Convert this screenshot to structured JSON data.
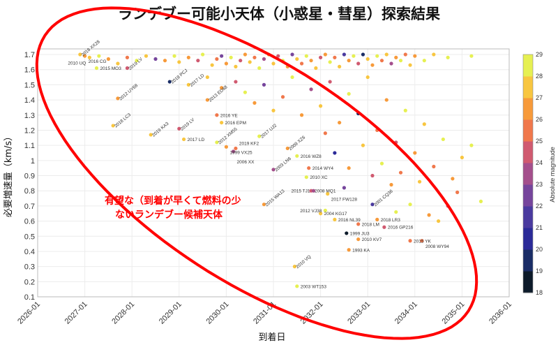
{
  "chart_data": {
    "type": "scatter",
    "title": "ランデブー可能小天体（小惑星・彗星）探索結果",
    "xlabel": "到着日",
    "ylabel": "必要増速量（km/s）",
    "xlim": [
      2026,
      2036
    ],
    "ylim": [
      0.1,
      1.7
    ],
    "x_ticks": [
      "2026-01",
      "2027-01",
      "2028-01",
      "2029-01",
      "2030-01",
      "2031-01",
      "2032-01",
      "2033-01",
      "2034-01",
      "2035-01",
      "2036-01"
    ],
    "y_ticks": [
      0.1,
      0.2,
      0.3,
      0.4,
      0.5,
      0.6,
      0.7,
      0.8,
      0.9,
      1,
      1.1,
      1.2,
      1.3,
      1.4,
      1.5,
      1.6,
      1.7
    ],
    "grid": true,
    "colorbar": {
      "label": "Absolute magnitude",
      "range": [
        18,
        29
      ],
      "ticks": [
        18,
        19,
        20,
        21,
        22,
        23,
        24,
        25,
        26,
        27,
        28,
        29
      ],
      "colors": [
        "#0d1b2a",
        "#1a2d66",
        "#2b2a98",
        "#4a3a9f",
        "#76459c",
        "#a44f8c",
        "#d05a70",
        "#f0784c",
        "#f79a3a",
        "#f8c640",
        "#e6f052"
      ]
    },
    "annotation": {
      "line1": "有望な（到着が早くて燃料の少",
      "line2": "ないランデブー候補天体",
      "color": "#ff0000"
    },
    "labeled_points": [
      {
        "name": "2016 XX28",
        "x": 2026.9,
        "y": 1.7,
        "mag": 27.5
      },
      {
        "name": "2016 CG",
        "x": 2027.0,
        "y": 1.69,
        "mag": 26.5
      },
      {
        "name": "2010 UQ",
        "x": 2027.1,
        "y": 1.68,
        "mag": 27.8
      },
      {
        "name": "2015 MO3",
        "x": 2027.25,
        "y": 1.61,
        "mag": 28.0
      },
      {
        "name": "2019 LV",
        "x": 2027.9,
        "y": 1.61,
        "mag": 24.5
      },
      {
        "name": "2018 PCJ",
        "x": 2028.8,
        "y": 1.52,
        "mag": 19.5
      },
      {
        "name": "2012 UY68",
        "x": 2027.7,
        "y": 1.41,
        "mag": 26.0
      },
      {
        "name": "2017 LD",
        "x": 2029.2,
        "y": 1.5,
        "mag": 27.5
      },
      {
        "name": "2013 ED68",
        "x": 2029.6,
        "y": 1.4,
        "mag": 26.3
      },
      {
        "name": "2018 LC3",
        "x": 2027.6,
        "y": 1.23,
        "mag": 27.8
      },
      {
        "name": "2019 KA3",
        "x": 2028.4,
        "y": 1.17,
        "mag": 27.6
      },
      {
        "name": "2019 LV",
        "x": 2029.0,
        "y": 1.21,
        "mag": 24.2
      },
      {
        "name": "2017 LD",
        "x": 2029.1,
        "y": 1.14,
        "mag": 27.5
      },
      {
        "name": "2016 YE",
        "x": 2029.8,
        "y": 1.3,
        "mag": 25.5
      },
      {
        "name": "2016 EPM",
        "x": 2029.9,
        "y": 1.25,
        "mag": 27.0
      },
      {
        "name": "2012 XM55",
        "x": 2029.8,
        "y": 1.12,
        "mag": 28.5
      },
      {
        "name": "1999 VX25",
        "x": 2030.0,
        "y": 1.09,
        "mag": 26.5
      },
      {
        "name": "2019 KF2",
        "x": 2030.2,
        "y": 1.08,
        "mag": 25.3
      },
      {
        "name": "2006 XX",
        "x": 2030.15,
        "y": 1.06,
        "mag": 23.5
      },
      {
        "name": "2017 UJ2",
        "x": 2030.7,
        "y": 1.16,
        "mag": 28.5
      },
      {
        "name": "2009 XZ6",
        "x": 2031.3,
        "y": 1.08,
        "mag": 26.3
      },
      {
        "name": "2016 WZ8",
        "x": 2031.5,
        "y": 1.03,
        "mag": 28.3
      },
      {
        "name": "2003 LN6",
        "x": 2031.0,
        "y": 0.94,
        "mag": 23.8
      },
      {
        "name": "2014 WY4",
        "x": 2031.75,
        "y": 0.95,
        "mag": 25.3
      },
      {
        "name": "2010 XC",
        "x": 2031.7,
        "y": 0.89,
        "mag": 28.3
      },
      {
        "name": "2008 MQ1",
        "x": 2031.8,
        "y": 0.8,
        "mag": 24.0
      },
      {
        "name": "2015 TJ1",
        "x": 2031.85,
        "y": 0.8,
        "mag": 23.0
      },
      {
        "name": "2017 FW128",
        "x": 2032.15,
        "y": 0.78,
        "mag": 27.3
      },
      {
        "name": "2015 WA13",
        "x": 2030.8,
        "y": 0.71,
        "mag": 26.5
      },
      {
        "name": "2004 KG17",
        "x": 2032.0,
        "y": 0.65,
        "mag": 27.6
      },
      {
        "name": "2012 VJ38",
        "x": 2032.1,
        "y": 0.67,
        "mag": 28.4
      },
      {
        "name": "2016 NL39",
        "x": 2032.3,
        "y": 0.61,
        "mag": 27.0
      },
      {
        "name": "1999 JU3",
        "x": 2032.55,
        "y": 0.52,
        "mag": 18.8
      },
      {
        "name": "2018 LM",
        "x": 2032.8,
        "y": 0.58,
        "mag": 25.5
      },
      {
        "name": "2010 KV7",
        "x": 2032.8,
        "y": 0.48,
        "mag": 26.5
      },
      {
        "name": "1993 KA",
        "x": 2032.6,
        "y": 0.41,
        "mag": 26.5
      },
      {
        "name": "2001 CQ36",
        "x": 2033.1,
        "y": 0.71,
        "mag": 21.5
      },
      {
        "name": "2018 LR3",
        "x": 2033.2,
        "y": 0.61,
        "mag": 26.6
      },
      {
        "name": "2016 GP216",
        "x": 2033.35,
        "y": 0.56,
        "mag": 24.0
      },
      {
        "name": "2015 YK",
        "x": 2033.9,
        "y": 0.47,
        "mag": 25.5
      },
      {
        "name": "2008 WY94",
        "x": 2034.15,
        "y": 0.47,
        "mag": 25.6
      },
      {
        "name": "2010 VQ",
        "x": 2031.45,
        "y": 0.3,
        "mag": 27.8
      },
      {
        "name": "2003 WT153",
        "x": 2031.5,
        "y": 0.17,
        "mag": 28.5
      }
    ],
    "points": [
      [
        2027.3,
        1.69,
        28.5
      ],
      [
        2027.5,
        1.67,
        26.3
      ],
      [
        2027.7,
        1.64,
        27.5
      ],
      [
        2027.9,
        1.68,
        25.5
      ],
      [
        2028.1,
        1.66,
        28.3
      ],
      [
        2028.3,
        1.69,
        27.4
      ],
      [
        2028.5,
        1.67,
        22.5
      ],
      [
        2028.7,
        1.66,
        26.0
      ],
      [
        2028.9,
        1.69,
        28.6
      ],
      [
        2029.0,
        1.65,
        27.6
      ],
      [
        2029.2,
        1.68,
        26.2
      ],
      [
        2029.4,
        1.66,
        24.5
      ],
      [
        2029.5,
        1.7,
        28.2
      ],
      [
        2029.7,
        1.63,
        27.0
      ],
      [
        2029.8,
        1.67,
        25.2
      ],
      [
        2029.9,
        1.69,
        22.8
      ],
      [
        2030.0,
        1.64,
        26.5
      ],
      [
        2030.1,
        1.68,
        28.5
      ],
      [
        2030.2,
        1.62,
        27.3
      ],
      [
        2030.3,
        1.66,
        24.3
      ],
      [
        2030.4,
        1.7,
        26.6
      ],
      [
        2030.5,
        1.65,
        27.8
      ],
      [
        2030.6,
        1.68,
        25.6
      ],
      [
        2030.7,
        1.61,
        28.3
      ],
      [
        2030.8,
        1.67,
        23.5
      ],
      [
        2030.9,
        1.7,
        26.2
      ],
      [
        2031.0,
        1.64,
        27.6
      ],
      [
        2031.1,
        1.69,
        24.8
      ],
      [
        2031.2,
        1.66,
        28.6
      ],
      [
        2031.3,
        1.62,
        26.0
      ],
      [
        2031.4,
        1.7,
        22.3
      ],
      [
        2031.5,
        1.67,
        27.2
      ],
      [
        2031.6,
        1.64,
        25.3
      ],
      [
        2031.7,
        1.69,
        28.2
      ],
      [
        2031.8,
        1.66,
        26.4
      ],
      [
        2031.9,
        1.61,
        27.7
      ],
      [
        2032.0,
        1.68,
        24.0
      ],
      [
        2032.1,
        1.7,
        26.8
      ],
      [
        2032.2,
        1.65,
        28.4
      ],
      [
        2032.3,
        1.68,
        25.1
      ],
      [
        2032.4,
        1.62,
        27.3
      ],
      [
        2032.5,
        1.7,
        21.0
      ],
      [
        2032.6,
        1.66,
        26.3
      ],
      [
        2032.7,
        1.69,
        28.0
      ],
      [
        2032.8,
        1.64,
        24.6
      ],
      [
        2032.9,
        1.7,
        19.8
      ],
      [
        2033.0,
        1.67,
        27.5
      ],
      [
        2033.1,
        1.63,
        26.1
      ],
      [
        2033.2,
        1.69,
        28.5
      ],
      [
        2033.3,
        1.66,
        25.4
      ],
      [
        2033.4,
        1.7,
        27.0
      ],
      [
        2033.5,
        1.64,
        23.2
      ],
      [
        2033.6,
        1.68,
        26.7
      ],
      [
        2033.7,
        1.66,
        28.3
      ],
      [
        2033.8,
        1.7,
        25.8
      ],
      [
        2033.9,
        1.63,
        27.4
      ],
      [
        2034.0,
        1.69,
        26.2
      ],
      [
        2034.2,
        1.66,
        28.6
      ],
      [
        2034.4,
        1.7,
        27.1
      ],
      [
        2034.7,
        1.68,
        28.3
      ],
      [
        2035.2,
        1.69,
        28.0
      ],
      [
        2029.6,
        1.55,
        27.8
      ],
      [
        2029.9,
        1.48,
        26.3
      ],
      [
        2030.2,
        1.52,
        24.8
      ],
      [
        2030.4,
        1.45,
        28.2
      ],
      [
        2030.6,
        1.38,
        26.5
      ],
      [
        2030.8,
        1.5,
        22.5
      ],
      [
        2031.0,
        1.33,
        27.6
      ],
      [
        2031.2,
        1.42,
        25.3
      ],
      [
        2031.4,
        1.55,
        28.4
      ],
      [
        2031.6,
        1.3,
        26.0
      ],
      [
        2031.8,
        1.47,
        23.8
      ],
      [
        2032.0,
        1.36,
        27.4
      ],
      [
        2032.2,
        1.52,
        24.5
      ],
      [
        2032.4,
        1.25,
        26.3
      ],
      [
        2032.6,
        1.44,
        28.5
      ],
      [
        2032.8,
        1.31,
        19.5
      ],
      [
        2033.0,
        1.55,
        27.0
      ],
      [
        2033.2,
        1.2,
        25.6
      ],
      [
        2033.4,
        1.4,
        26.8
      ],
      [
        2033.6,
        1.12,
        24.2
      ],
      [
        2033.8,
        1.33,
        28.3
      ],
      [
        2034.0,
        1.05,
        26.5
      ],
      [
        2034.2,
        1.24,
        27.5
      ],
      [
        2034.4,
        0.96,
        25.2
      ],
      [
        2034.6,
        1.14,
        28.0
      ],
      [
        2034.8,
        0.88,
        26.8
      ],
      [
        2035.0,
        1.02,
        27.6
      ],
      [
        2035.2,
        1.1,
        28.4
      ],
      [
        2035.4,
        0.73,
        28.6
      ],
      [
        2034.9,
        0.79,
        25.0
      ],
      [
        2032.3,
        1.05,
        20.5
      ],
      [
        2032.6,
        0.95,
        26.4
      ],
      [
        2032.9,
        1.1,
        27.3
      ],
      [
        2033.1,
        0.9,
        24.3
      ],
      [
        2033.3,
        0.98,
        28.2
      ],
      [
        2033.5,
        0.84,
        26.0
      ],
      [
        2033.7,
        0.92,
        25.4
      ],
      [
        2033.9,
        0.71,
        28.4
      ],
      [
        2034.1,
        0.86,
        27.1
      ],
      [
        2034.3,
        0.64,
        26.6
      ],
      [
        2032.1,
        1.18,
        25.8
      ],
      [
        2032.5,
        0.82,
        22.0
      ],
      [
        2033.6,
        0.66,
        28.3
      ],
      [
        2034.5,
        0.6,
        27.0
      ],
      [
        2034.7,
        0.7,
        24.4
      ]
    ]
  }
}
